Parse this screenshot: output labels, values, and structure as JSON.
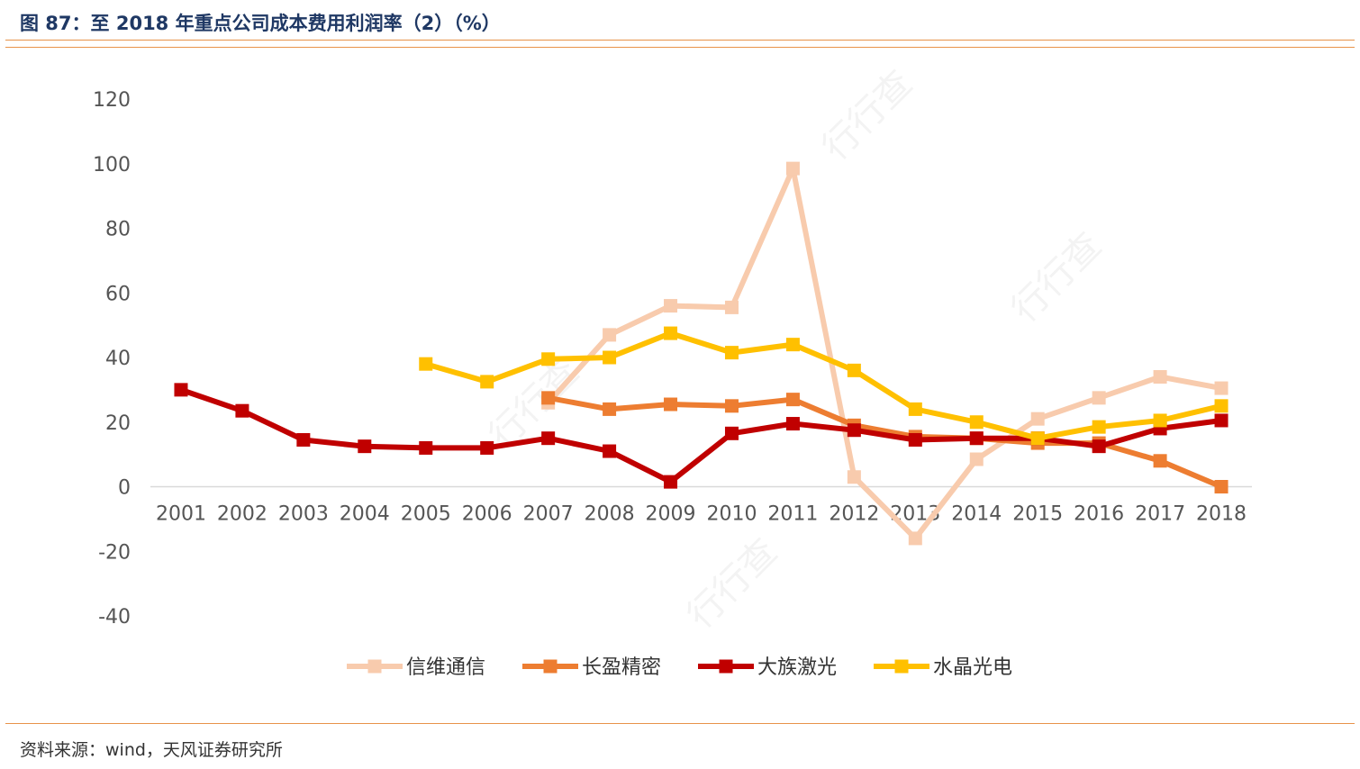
{
  "header": {
    "title": "图 87：至 2018 年重点公司成本费用利润率（2）（%）"
  },
  "footer": {
    "source": "资料来源：wind，天风证券研究所"
  },
  "colors": {
    "accent": "#e8934a",
    "title": "#1f3864"
  },
  "watermark": "行行查",
  "chart_data": {
    "type": "line",
    "title": "",
    "xlabel": "",
    "ylabel": "",
    "categories": [
      "2001",
      "2002",
      "2003",
      "2004",
      "2005",
      "2006",
      "2007",
      "2008",
      "2009",
      "2010",
      "2011",
      "2012",
      "2013",
      "2014",
      "2015",
      "2016",
      "2017",
      "2018"
    ],
    "ylim": [
      -40,
      120
    ],
    "yticks": [
      120,
      100,
      80,
      60,
      40,
      20,
      0,
      -20,
      -40
    ],
    "grid": false,
    "legend": "bottom",
    "series": [
      {
        "name": "信维通信",
        "color": "#f8cbad",
        "values": [
          null,
          null,
          null,
          null,
          null,
          null,
          26,
          47,
          56,
          55.5,
          98.5,
          3,
          -16,
          8.5,
          21,
          27.5,
          34,
          30.5
        ]
      },
      {
        "name": "长盈精密",
        "color": "#ed7d31",
        "values": [
          null,
          null,
          null,
          null,
          null,
          null,
          27.5,
          24,
          25.5,
          25,
          27,
          19,
          15.5,
          15,
          13.5,
          13.5,
          8,
          0
        ]
      },
      {
        "name": "大族激光",
        "color": "#c00000",
        "values": [
          30,
          23.5,
          14.5,
          12.5,
          12,
          12,
          15,
          11,
          1.5,
          16.5,
          19.5,
          17.5,
          14.5,
          15,
          15,
          12.5,
          18,
          20.5
        ]
      },
      {
        "name": "水晶光电",
        "color": "#ffc000",
        "values": [
          null,
          null,
          null,
          null,
          38,
          32.5,
          39.5,
          40,
          47.5,
          41.5,
          44,
          36,
          24,
          20,
          15,
          18.5,
          20.5,
          25
        ]
      }
    ]
  }
}
